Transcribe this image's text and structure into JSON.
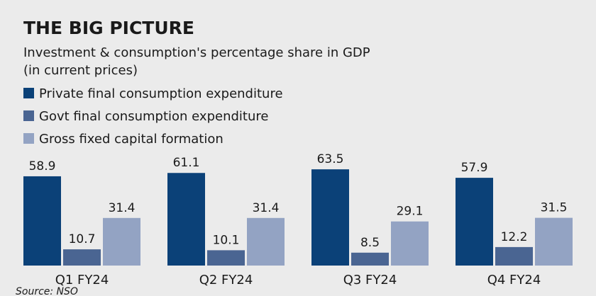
{
  "chart_data": {
    "type": "bar",
    "title": "THE BIG PICTURE",
    "subtitle": [
      "Investment & consumption's percentage share in GDP",
      "(in current prices)"
    ],
    "categories": [
      "Q1 FY24",
      "Q2 FY24",
      "Q3 FY24",
      "Q4 FY24"
    ],
    "series": [
      {
        "name": "Private final consumption expenditure",
        "color": "#0b4178",
        "values": [
          58.9,
          61.1,
          63.5,
          57.9
        ]
      },
      {
        "name": "Govt final consumption expenditure",
        "color": "#4a6592",
        "values": [
          10.7,
          10.1,
          8.5,
          12.2
        ]
      },
      {
        "name": "Gross fixed capital formation",
        "color": "#93a3c3",
        "values": [
          31.4,
          31.4,
          29.1,
          31.5
        ]
      }
    ],
    "source": "Source: NSO"
  }
}
